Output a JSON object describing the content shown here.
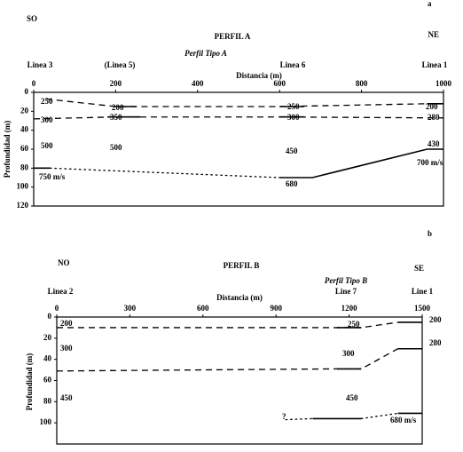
{
  "chart_data": [
    {
      "type": "line",
      "panel": "a",
      "title": "PERFIL A",
      "subtitle": "Perfil Tipo A",
      "left_label": "SO",
      "right_label": "NE",
      "xlabel": "Distancia  (m)",
      "ylabel": "Profundidad (m)",
      "y_inverted": true,
      "wells": [
        "Linea 3",
        "(Linea 5)",
        "Linea 6",
        "Linea 1"
      ],
      "xlim": [
        0,
        1000
      ],
      "xticks": [
        0,
        200,
        400,
        600,
        800,
        1000
      ],
      "ylim": [
        0,
        120
      ],
      "yticks": [
        0,
        20,
        40,
        60,
        80,
        100,
        120
      ],
      "color": "#000000",
      "series": [
        {
          "style": "dashed",
          "x": [
            30,
            200,
            600,
            960
          ],
          "values": [
            7,
            15,
            15,
            12
          ]
        },
        {
          "style": "solid",
          "x": [
            200,
            250
          ],
          "values": [
            15,
            15
          ]
        },
        {
          "style": "solid",
          "x": [
            600,
            660
          ],
          "values": [
            15,
            15
          ]
        },
        {
          "style": "solid",
          "x": [
            960,
            1000
          ],
          "values": [
            12,
            12
          ]
        },
        {
          "style": "dashed",
          "x": [
            0,
            200,
            600,
            1000
          ],
          "values": [
            28,
            26,
            26,
            27
          ]
        },
        {
          "style": "solid",
          "x": [
            180,
            260
          ],
          "values": [
            26,
            26
          ]
        },
        {
          "style": "solid",
          "x": [
            600,
            660
          ],
          "values": [
            26,
            26
          ]
        },
        {
          "style": "solid",
          "x": [
            0,
            40
          ],
          "values": [
            80,
            80
          ]
        },
        {
          "style": "dotted",
          "x": [
            40,
            600
          ],
          "values": [
            80,
            90
          ]
        },
        {
          "style": "solid",
          "x": [
            600,
            680,
            960,
            1000
          ],
          "values": [
            90,
            90,
            60,
            60
          ]
        }
      ],
      "annotations": [
        "250",
        "200",
        "250",
        "200",
        "300",
        "350",
        "300",
        "280",
        "500",
        "500",
        "450",
        "430",
        "700 m/s",
        "750 m/s",
        "680"
      ]
    },
    {
      "type": "line",
      "panel": "b",
      "title": "PERFIL B",
      "subtitle": "Perfil Tipo B",
      "left_label": "NO",
      "right_label": "SE",
      "xlabel": "Distancia  (m)",
      "ylabel": "Profundidad (m)",
      "y_inverted": true,
      "wells": [
        "Linea 2",
        "Line 7",
        "Line 1"
      ],
      "xlim": [
        0,
        1500
      ],
      "xticks": [
        0,
        300,
        600,
        900,
        1200,
        1500
      ],
      "ylim": [
        0,
        120
      ],
      "yticks": [
        0,
        20,
        40,
        60,
        80,
        100
      ],
      "color": "#000000",
      "series": [
        {
          "style": "dashed",
          "x": [
            0,
            1250,
            1400
          ],
          "values": [
            10,
            10,
            5
          ]
        },
        {
          "style": "solid",
          "x": [
            1150,
            1250
          ],
          "values": [
            10,
            10
          ]
        },
        {
          "style": "solid",
          "x": [
            1400,
            1500
          ],
          "values": [
            5,
            5
          ]
        },
        {
          "style": "dashed",
          "x": [
            0,
            1150,
            1250,
            1400
          ],
          "values": [
            51,
            49,
            49,
            30
          ]
        },
        {
          "style": "solid",
          "x": [
            1150,
            1250
          ],
          "values": [
            49,
            49
          ]
        },
        {
          "style": "solid",
          "x": [
            1400,
            1500
          ],
          "values": [
            30,
            30
          ]
        },
        {
          "style": "dotted",
          "x": [
            940,
            1050
          ],
          "values": [
            97,
            96
          ]
        },
        {
          "style": "solid",
          "x": [
            1050,
            1250
          ],
          "values": [
            96,
            96
          ]
        },
        {
          "style": "dotted",
          "x": [
            1250,
            1400
          ],
          "values": [
            96,
            91
          ]
        },
        {
          "style": "solid",
          "x": [
            1400,
            1500
          ],
          "values": [
            91,
            91
          ]
        }
      ],
      "annotations": [
        "200",
        "250",
        "200",
        "300",
        "300",
        "280",
        "450",
        "450",
        "?",
        "680 m/s"
      ]
    }
  ]
}
